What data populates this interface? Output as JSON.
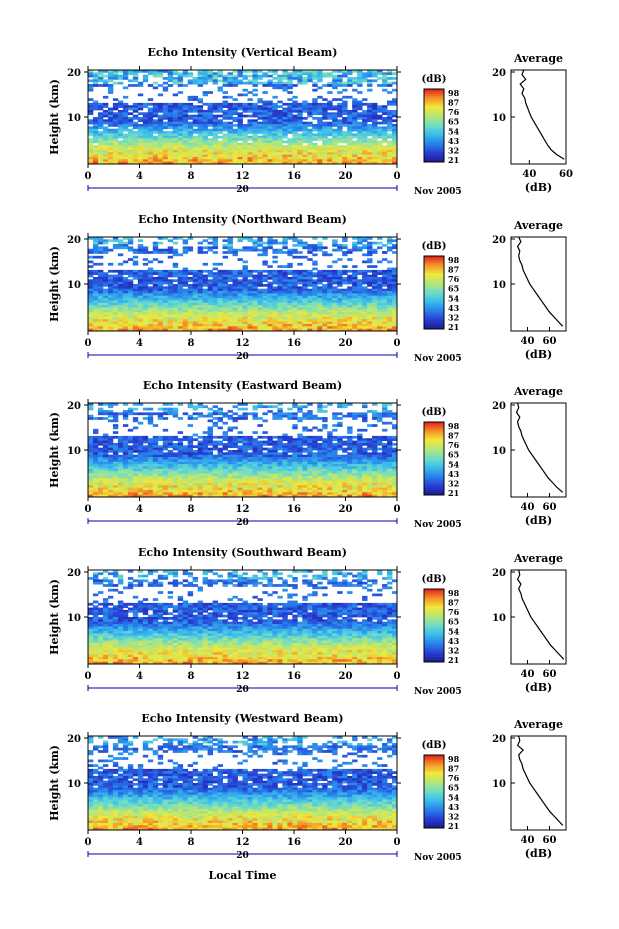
{
  "figure": {
    "heatmap_ylabel": "Height (km)",
    "x_tick_labels": [
      "0",
      "4",
      "8",
      "12",
      "16",
      "20",
      "0"
    ],
    "date_label": "20",
    "month_label": "Nov 2005",
    "xlabel": "Local Time",
    "colorbar_unit": "(dB)",
    "colorbar_ticks": [
      "98",
      "87",
      "76",
      "65",
      "54",
      "43",
      "32",
      "21"
    ],
    "profile_title": "Average",
    "profile_xlabel": "(dB)",
    "y_tick_labels": [
      "20",
      "10"
    ],
    "colors": {
      "high": "#e31a1c",
      "mid": "#f2e83a",
      "low": "#2233aa",
      "axis": "#000000",
      "arrow": "#0000aa"
    }
  },
  "chart_data": [
    {
      "type": "heatmap",
      "title": "Echo Intensity (Vertical Beam)",
      "x_range": [
        0,
        24
      ],
      "y_range": [
        0,
        20
      ],
      "color_range": [
        21,
        98
      ],
      "profile": {
        "title": "Average",
        "xlim": [
          30,
          60
        ],
        "x_ticks": [
          "40",
          "60"
        ],
        "heights": [
          1,
          2,
          3,
          4,
          5,
          6,
          7,
          8,
          9,
          10,
          11,
          12,
          13,
          14,
          15,
          16,
          17,
          18,
          19,
          20
        ],
        "values": [
          59,
          55,
          52,
          50,
          48.5,
          47,
          45.5,
          44,
          42.5,
          41,
          40,
          39,
          38,
          37.5,
          36,
          37,
          35,
          38,
          36,
          37
        ]
      }
    },
    {
      "type": "heatmap",
      "title": "Echo Intensity (Northward Beam)",
      "x_range": [
        0,
        24
      ],
      "y_range": [
        0,
        20
      ],
      "color_range": [
        21,
        98
      ],
      "profile": {
        "title": "Average",
        "xlim": [
          25,
          75
        ],
        "x_ticks": [
          "40",
          "60"
        ],
        "heights": [
          1,
          2,
          3,
          4,
          5,
          6,
          7,
          8,
          9,
          10,
          11,
          12,
          13,
          14,
          15,
          16,
          17,
          18,
          19,
          20
        ],
        "values": [
          72,
          68,
          64,
          60,
          57,
          54,
          51,
          48,
          45,
          42,
          40,
          38,
          36,
          35,
          33,
          32,
          33,
          31,
          34,
          32
        ]
      }
    },
    {
      "type": "heatmap",
      "title": "Echo Intensity (Eastward Beam)",
      "x_range": [
        0,
        24
      ],
      "y_range": [
        0,
        20
      ],
      "color_range": [
        21,
        98
      ],
      "profile": {
        "title": "Average",
        "xlim": [
          25,
          75
        ],
        "x_ticks": [
          "40",
          "60"
        ],
        "heights": [
          1,
          2,
          3,
          4,
          5,
          6,
          7,
          8,
          9,
          10,
          11,
          12,
          13,
          14,
          15,
          16,
          17,
          18,
          19,
          20
        ],
        "values": [
          72,
          67,
          63,
          59,
          56,
          53,
          50,
          47,
          44,
          41,
          39,
          37,
          35,
          34,
          32,
          31,
          33,
          30,
          32,
          31
        ]
      }
    },
    {
      "type": "heatmap",
      "title": "Echo Intensity (Southward Beam)",
      "x_range": [
        0,
        24
      ],
      "y_range": [
        0,
        20
      ],
      "color_range": [
        21,
        98
      ],
      "profile": {
        "title": "Average",
        "xlim": [
          25,
          75
        ],
        "x_ticks": [
          "40",
          "60"
        ],
        "heights": [
          1,
          2,
          3,
          4,
          5,
          6,
          7,
          8,
          9,
          10,
          11,
          12,
          13,
          14,
          15,
          16,
          17,
          18,
          19,
          20
        ],
        "values": [
          73,
          69,
          65,
          61,
          58,
          55,
          52,
          49,
          46,
          43,
          41,
          39,
          37,
          35,
          34,
          32,
          34,
          31,
          33,
          32
        ]
      }
    },
    {
      "type": "heatmap",
      "title": "Echo Intensity (Westward Beam)",
      "x_range": [
        0,
        24
      ],
      "y_range": [
        0,
        20
      ],
      "color_range": [
        21,
        98
      ],
      "profile": {
        "title": "Average",
        "xlim": [
          25,
          75
        ],
        "x_ticks": [
          "40",
          "60"
        ],
        "heights": [
          1,
          2,
          3,
          4,
          5,
          6,
          7,
          8,
          9,
          10,
          11,
          12,
          13,
          14,
          15,
          16,
          17,
          18,
          19,
          20
        ],
        "values": [
          72,
          68,
          64,
          60,
          57,
          54,
          51,
          48,
          45,
          42,
          40,
          38,
          36,
          35,
          33,
          32,
          36,
          31,
          33,
          32
        ]
      }
    }
  ]
}
